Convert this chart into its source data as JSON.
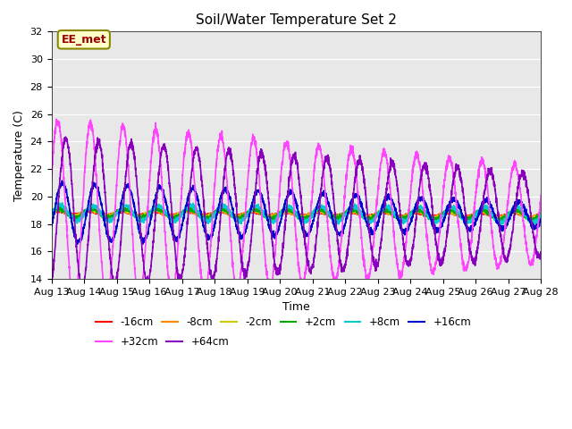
{
  "title": "Soil/Water Temperature Set 2",
  "xlabel": "Time",
  "ylabel": "Temperature (C)",
  "ylim": [
    14,
    32
  ],
  "xlim": [
    0,
    15
  ],
  "x_tick_labels": [
    "Aug 13",
    "Aug 14",
    "Aug 15",
    "Aug 16",
    "Aug 17",
    "Aug 18",
    "Aug 19",
    "Aug 20",
    "Aug 21",
    "Aug 22",
    "Aug 23",
    "Aug 24",
    "Aug 25",
    "Aug 26",
    "Aug 27",
    "Aug 28"
  ],
  "annotation_text": "EE_met",
  "annotation_bg": "#FFFFCC",
  "annotation_border": "#888800",
  "annotation_text_color": "#990000",
  "background_color": "#E8E8E8",
  "series_order": [
    "-16cm",
    "-8cm",
    "-2cm",
    "+2cm",
    "+8cm",
    "+16cm",
    "+32cm",
    "+64cm"
  ],
  "series": {
    "-16cm": {
      "color": "#FF0000",
      "lw": 1.2
    },
    "-8cm": {
      "color": "#FF8800",
      "lw": 1.2
    },
    "-2cm": {
      "color": "#CCCC00",
      "lw": 1.2
    },
    "+2cm": {
      "color": "#00AA00",
      "lw": 1.2
    },
    "+8cm": {
      "color": "#00CCCC",
      "lw": 1.2
    },
    "+16cm": {
      "color": "#0000CC",
      "lw": 1.2
    },
    "+32cm": {
      "color": "#FF44FF",
      "lw": 1.2
    },
    "+64cm": {
      "color": "#8800BB",
      "lw": 1.2
    }
  },
  "legend_row1": [
    "-16cm",
    "-8cm",
    "-2cm",
    "+2cm",
    "+8cm",
    "+16cm"
  ],
  "legend_row2": [
    "+32cm",
    "+64cm"
  ]
}
